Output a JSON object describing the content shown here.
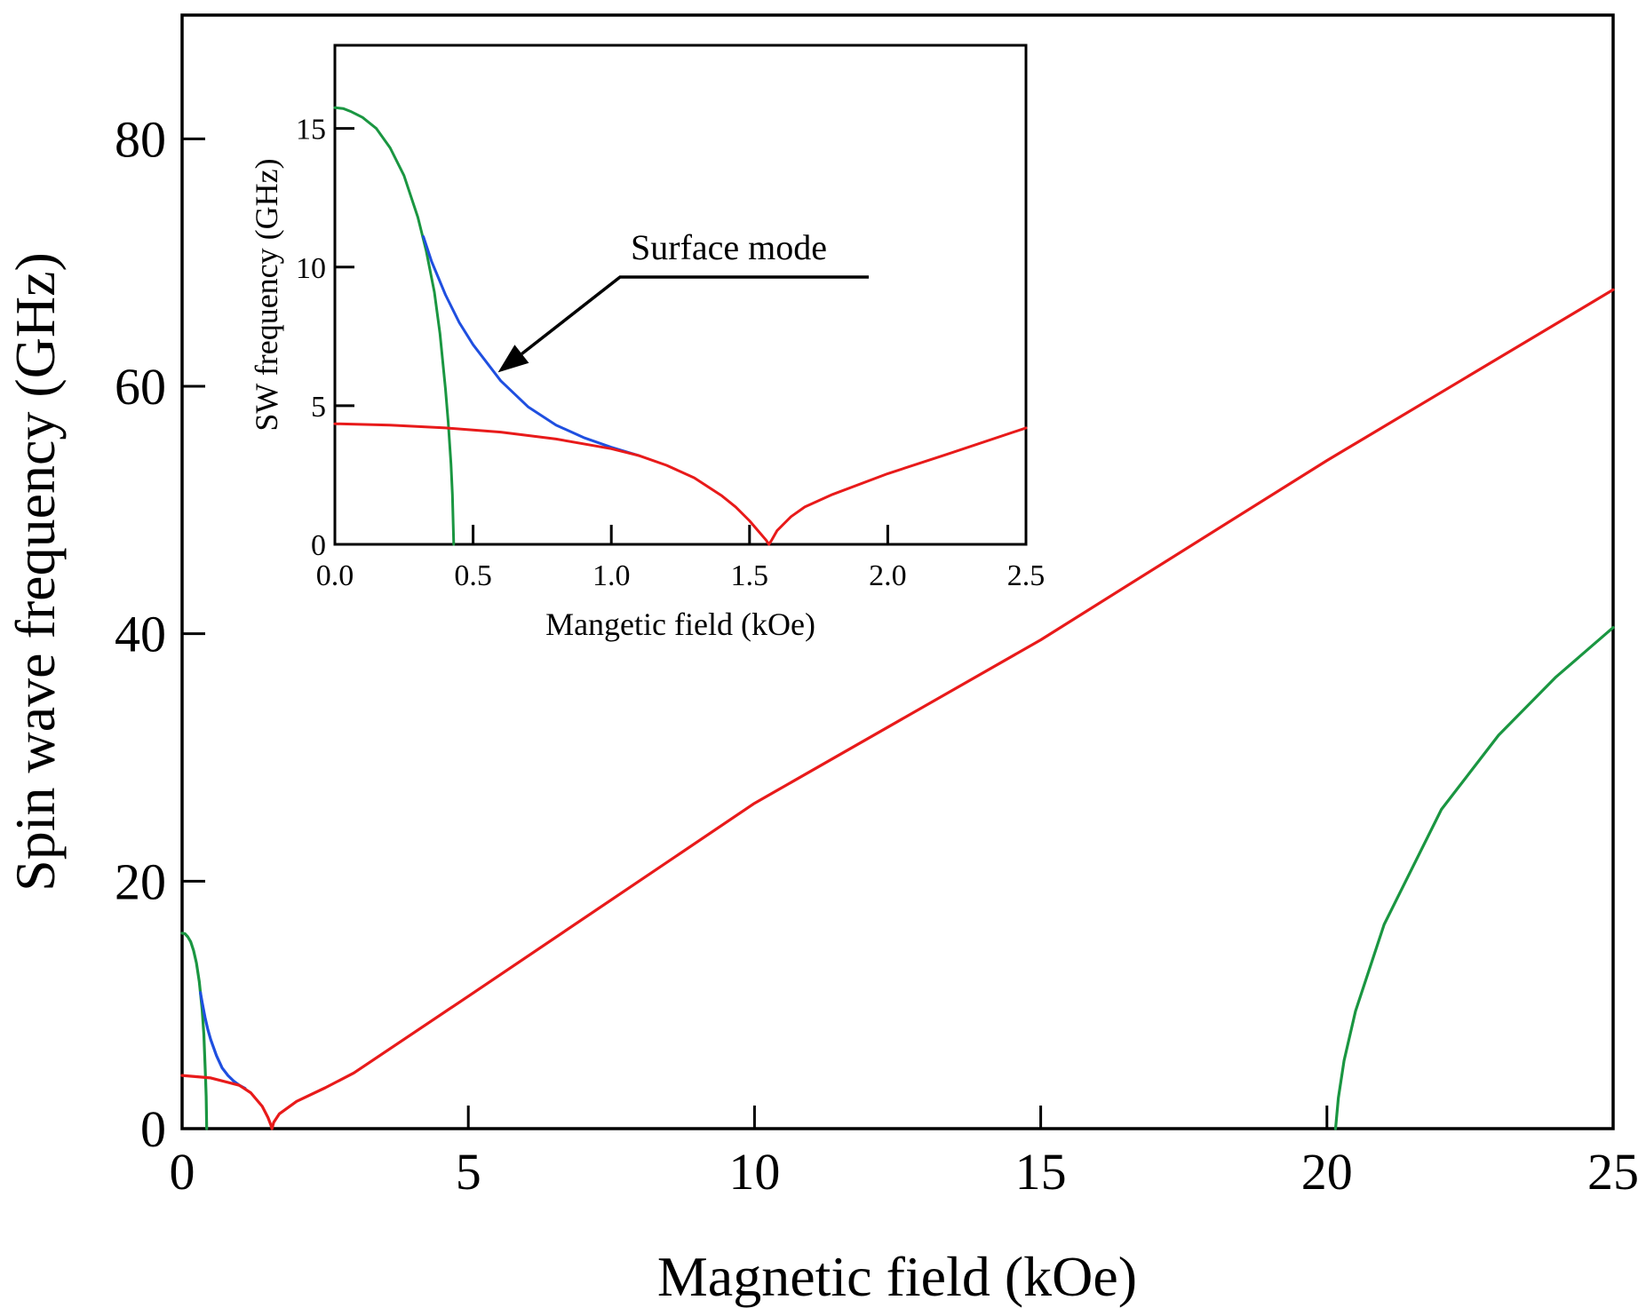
{
  "chart_data": [
    {
      "id": "main",
      "type": "line",
      "xlabel": "Magnetic field (kOe)",
      "ylabel": "Spin wave frequency (GHz)",
      "xlim": [
        0,
        25
      ],
      "ylim": [
        0,
        90
      ],
      "xticks": [
        0,
        5,
        10,
        15,
        20,
        25
      ],
      "yticks": [
        0,
        20,
        40,
        60,
        80
      ],
      "grid": false,
      "series": [
        {
          "name": "green-low",
          "color": "#1a9641",
          "x": [
            0,
            0.05,
            0.1,
            0.15,
            0.2,
            0.25,
            0.3,
            0.32,
            0.35,
            0.38,
            0.4,
            0.41,
            0.42,
            0.43
          ],
          "y": [
            15.8,
            15.75,
            15.5,
            15.1,
            14.4,
            13.4,
            11.9,
            11.0,
            9.6,
            7.6,
            5.2,
            4.1,
            2.6,
            0.0
          ]
        },
        {
          "name": "blue-surface",
          "color": "#1f4fe0",
          "x": [
            0.32,
            0.35,
            0.4,
            0.45,
            0.5,
            0.6,
            0.7,
            0.8,
            0.9,
            1.0,
            1.1
          ],
          "y": [
            11.0,
            10.2,
            9.0,
            8.0,
            7.2,
            5.9,
            4.9,
            4.3,
            3.85,
            3.5,
            3.25
          ]
        },
        {
          "name": "red",
          "color": "#e81a1a",
          "x": [
            0,
            0.5,
            1.0,
            1.2,
            1.4,
            1.5,
            1.55,
            1.57,
            1.6,
            1.7,
            2.0,
            2.5,
            3,
            5,
            10,
            15,
            20,
            25
          ],
          "y": [
            4.3,
            4.1,
            3.5,
            2.9,
            1.8,
            0.9,
            0.3,
            0.0,
            0.5,
            1.2,
            2.2,
            3.3,
            4.5,
            10.7,
            26.3,
            39.5,
            54.0,
            67.8
          ]
        },
        {
          "name": "green-high",
          "color": "#1a9641",
          "x": [
            20.15,
            20.2,
            20.3,
            20.5,
            21,
            22,
            23,
            24,
            25
          ],
          "y": [
            0.0,
            2.5,
            5.5,
            9.5,
            16.5,
            25.8,
            31.8,
            36.5,
            40.5
          ]
        }
      ]
    },
    {
      "id": "inset",
      "type": "line",
      "xlabel": "Mangetic field (kOe)",
      "ylabel": "SW frequency (GHz)",
      "xlim": [
        0,
        2.5
      ],
      "ylim": [
        0,
        18
      ],
      "xticks": [
        0,
        0.5,
        1.0,
        1.5,
        2.0,
        2.5
      ],
      "xticklabels": [
        "0.0",
        "0.5",
        "1.0",
        "1.5",
        "2.0",
        "2.5"
      ],
      "yticks": [
        0,
        5,
        10,
        15
      ],
      "grid": false,
      "annotation": {
        "text": "Surface mode",
        "x": 0.59,
        "y": 6.2
      },
      "series": [
        {
          "name": "green-low",
          "color": "#1a9641",
          "x": [
            0,
            0.03,
            0.06,
            0.1,
            0.15,
            0.2,
            0.25,
            0.3,
            0.33,
            0.36,
            0.38,
            0.4,
            0.41,
            0.42,
            0.425,
            0.43
          ],
          "y": [
            15.75,
            15.72,
            15.6,
            15.4,
            15.0,
            14.3,
            13.3,
            11.8,
            10.6,
            9.1,
            7.6,
            5.6,
            4.4,
            2.9,
            1.8,
            0.0
          ]
        },
        {
          "name": "blue-surface",
          "color": "#1f4fe0",
          "x": [
            0.32,
            0.35,
            0.4,
            0.45,
            0.5,
            0.6,
            0.7,
            0.8,
            0.9,
            1.0,
            1.1
          ],
          "y": [
            11.1,
            10.2,
            9.0,
            8.0,
            7.2,
            5.9,
            4.95,
            4.3,
            3.85,
            3.5,
            3.2
          ]
        },
        {
          "name": "red",
          "color": "#e81a1a",
          "x": [
            0,
            0.2,
            0.4,
            0.6,
            0.8,
            1.0,
            1.1,
            1.2,
            1.3,
            1.4,
            1.45,
            1.5,
            1.53,
            1.56,
            1.57,
            1.58,
            1.6,
            1.65,
            1.7,
            1.8,
            2.0,
            2.2,
            2.5
          ],
          "y": [
            4.35,
            4.3,
            4.2,
            4.05,
            3.8,
            3.45,
            3.2,
            2.85,
            2.4,
            1.75,
            1.35,
            0.85,
            0.5,
            0.15,
            0.0,
            0.15,
            0.5,
            1.0,
            1.35,
            1.8,
            2.55,
            3.2,
            4.2
          ]
        }
      ]
    }
  ]
}
